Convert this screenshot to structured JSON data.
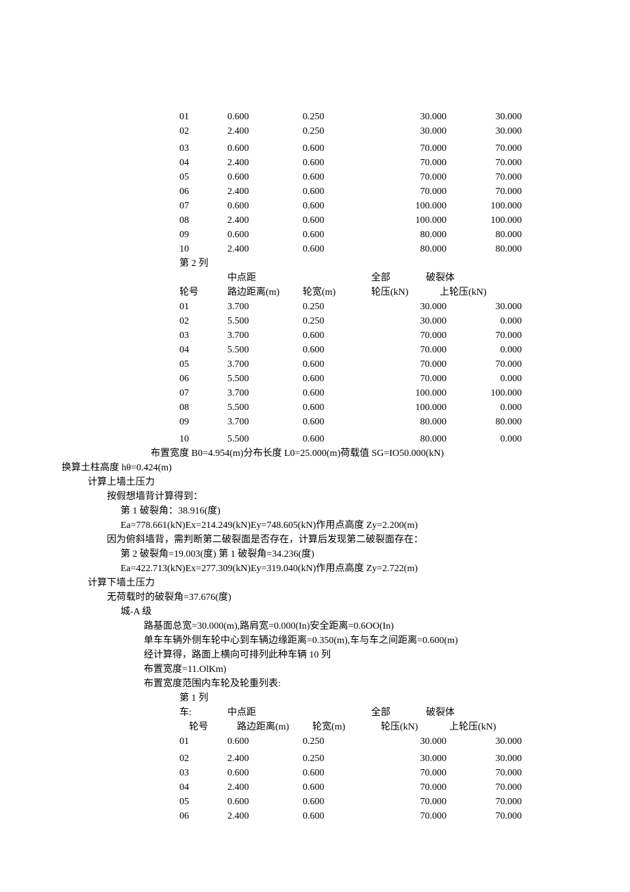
{
  "colors": {
    "text": "#000000",
    "background": "#ffffff"
  },
  "typography": {
    "font_family": "SimSun",
    "font_size_pt": 10.5,
    "line_height": 1.5
  },
  "table1_col1": {
    "rows": [
      {
        "no": "01",
        "mid": "0.600",
        "width": "0.250",
        "press": "30.000",
        "upper": "30.000"
      },
      {
        "no": "02",
        "mid": "2.400",
        "width": "0.250",
        "press": "30.000",
        "upper": "30.000"
      },
      {
        "no": "03",
        "mid": "0.600",
        "width": "0.600",
        "press": "70.000",
        "upper": "70.000"
      },
      {
        "no": "04",
        "mid": "2.400",
        "width": "0.600",
        "press": "70.000",
        "upper": "70.000"
      },
      {
        "no": "05",
        "mid": "0.600",
        "width": "0.600",
        "press": "70.000",
        "upper": "70.000"
      },
      {
        "no": "06",
        "mid": "2.400",
        "width": "0.600",
        "press": "70.000",
        "upper": "70.000"
      },
      {
        "no": "07",
        "mid": "0.600",
        "width": "0.600",
        "press": "100.000",
        "upper": "100.000"
      },
      {
        "no": "08",
        "mid": "2.400",
        "width": "0.600",
        "press": "100.000",
        "upper": "100.000"
      },
      {
        "no": "09",
        "mid": "0.600",
        "width": "0.600",
        "press": "80.000",
        "upper": "80.000"
      },
      {
        "no": "10",
        "mid": "2.400",
        "width": "0.600",
        "press": "80.000",
        "upper": "80.000"
      }
    ]
  },
  "col2_label": "第 2 列",
  "hdr": {
    "mid_top": "中点距",
    "all_top": "全部",
    "crack_top": "破裂体",
    "wheel_no": "轮号",
    "mid": "路边距离(m)",
    "width": "轮宽(m)",
    "press": "轮压(kN)",
    "upper": "上轮压(kN)"
  },
  "table1_col2": {
    "rows": [
      {
        "no": "01",
        "mid": "3.700",
        "width": "0.250",
        "press": "30.000",
        "upper": "30.000"
      },
      {
        "no": "02",
        "mid": "5.500",
        "width": "0.250",
        "press": "30.000",
        "upper": "0.000"
      },
      {
        "no": "03",
        "mid": "3.700",
        "width": "0.600",
        "press": "70.000",
        "upper": "70.000"
      },
      {
        "no": "04",
        "mid": "5.500",
        "width": "0.600",
        "press": "70.000",
        "upper": "0.000"
      },
      {
        "no": "05",
        "mid": "3.700",
        "width": "0.600",
        "press": "70.000",
        "upper": "70.000"
      },
      {
        "no": "06",
        "mid": "5.500",
        "width": "0.600",
        "press": "70.000",
        "upper": "0.000"
      },
      {
        "no": "07",
        "mid": "3.700",
        "width": "0.600",
        "press": "100.000",
        "upper": "100.000"
      },
      {
        "no": "08",
        "mid": "5.500",
        "width": "0.600",
        "press": "100.000",
        "upper": "0.000"
      },
      {
        "no": "09",
        "mid": "3.700",
        "width": "0.600",
        "press": "80.000",
        "upper": "80.000"
      },
      {
        "no": "10",
        "mid": "5.500",
        "width": "0.600",
        "press": "80.000",
        "upper": "0.000"
      }
    ]
  },
  "summary1": "布置宽度 B0=4.954(m)分布长度 L0=25.000(m)荷载值 SG=IO50.000(kN)",
  "lines_mid": {
    "l1": "换算土柱高度 hθ=0.424(m)",
    "l2": "计算上墙土压力",
    "l3": "按假想墙背计算得到：",
    "l4": "第 1 破裂角：38.916(度)",
    "l5": "Ea=778.661(kN)Ex=214.249(kN)Ey=748.605(kN)作用点高度 Zy=2.200(m)",
    "l6": "因为俯斜墙背，需判断第二破裂面是否存在，计算后发现第二破裂面存在：",
    "l7": "第 2 破裂角=19.003(度) 第 1 破裂角=34.236(度)",
    "l8": "Ea=422.713(kN)Ex=277.309(kN)Ey=319.040(kN)作用点高度 Zy=2.722(m)",
    "l9": "计算下墙土压力",
    "l10": "无荷载时的破裂角=37.676(度)",
    "l11": "城-A 级",
    "l12": "路基面总宽=30.000(m),路肩宽=0.000(In)安全距离=0.6OO(In)",
    "l13": "单车车辆外侧车轮中心到车辆边缘距离=0.350(m),车与车之间距离=0.600(m)",
    "l14": "经计算得，路面上横向可排列此种车辆 10 列",
    "l15": "布置宽度=11.OlKm)",
    "l16": "布置宽度范围内车轮及轮重列表:"
  },
  "col1_label": "第 1 列",
  "car_label": "车:",
  "table2_col1": {
    "rows": [
      {
        "no": "01",
        "mid": "0.600",
        "width": "0.250",
        "press": "30.000",
        "upper": "30.000"
      },
      {
        "no": "02",
        "mid": "2.400",
        "width": "0.250",
        "press": "30.000",
        "upper": "30.000"
      },
      {
        "no": "03",
        "mid": "0.600",
        "width": "0.600",
        "press": "70.000",
        "upper": "70.000"
      },
      {
        "no": "04",
        "mid": "2.400",
        "width": "0.600",
        "press": "70.000",
        "upper": "70.000"
      },
      {
        "no": "05",
        "mid": "0.600",
        "width": "0.600",
        "press": "70.000",
        "upper": "70.000"
      },
      {
        "no": "06",
        "mid": "2.400",
        "width": "0.600",
        "press": "70.000",
        "upper": "70.000"
      }
    ]
  }
}
